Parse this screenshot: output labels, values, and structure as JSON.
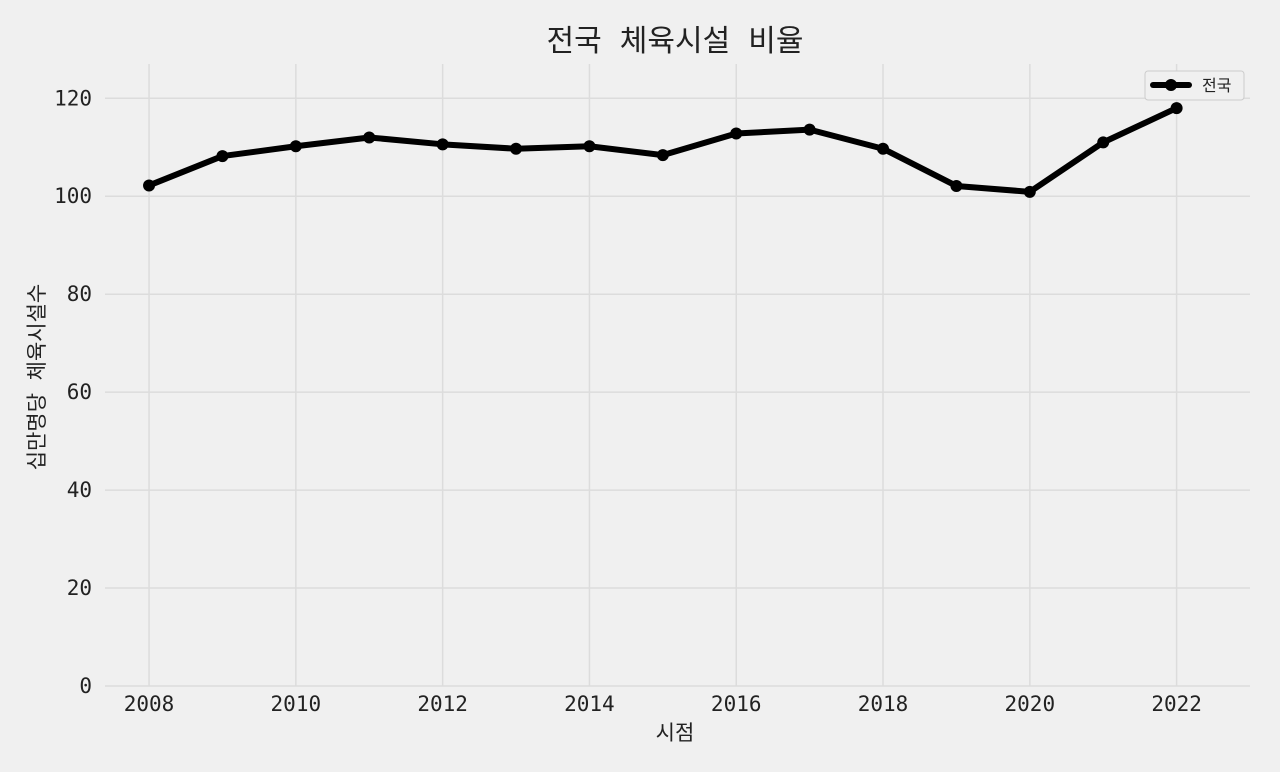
{
  "chart_data": {
    "type": "line",
    "title": "전국 체육시설 비율",
    "xlabel": "시점",
    "ylabel": "십만명당 체육시설수",
    "x": [
      2008,
      2009,
      2010,
      2011,
      2012,
      2013,
      2014,
      2015,
      2016,
      2017,
      2018,
      2019,
      2020,
      2021,
      2022
    ],
    "series": [
      {
        "name": "전국",
        "values": [
          102.2,
          108.2,
          110.2,
          112.0,
          110.6,
          109.7,
          110.2,
          108.4,
          112.8,
          113.6,
          109.7,
          102.1,
          100.9,
          111.0,
          118.0
        ],
        "color": "#000000",
        "marker": "circle"
      }
    ],
    "xticks": [
      "2008",
      "2010",
      "2012",
      "2014",
      "2016",
      "2018",
      "2020",
      "2022"
    ],
    "yticks": [
      "0",
      "20",
      "40",
      "60",
      "80",
      "100",
      "120"
    ],
    "xlim": [
      2007.4,
      2023.0
    ],
    "ylim": [
      0,
      127
    ],
    "grid": true,
    "legend_position": "top-right",
    "colors": {
      "background": "#f0f0f0",
      "grid": "#dcdcdc",
      "line": "#000000"
    }
  }
}
